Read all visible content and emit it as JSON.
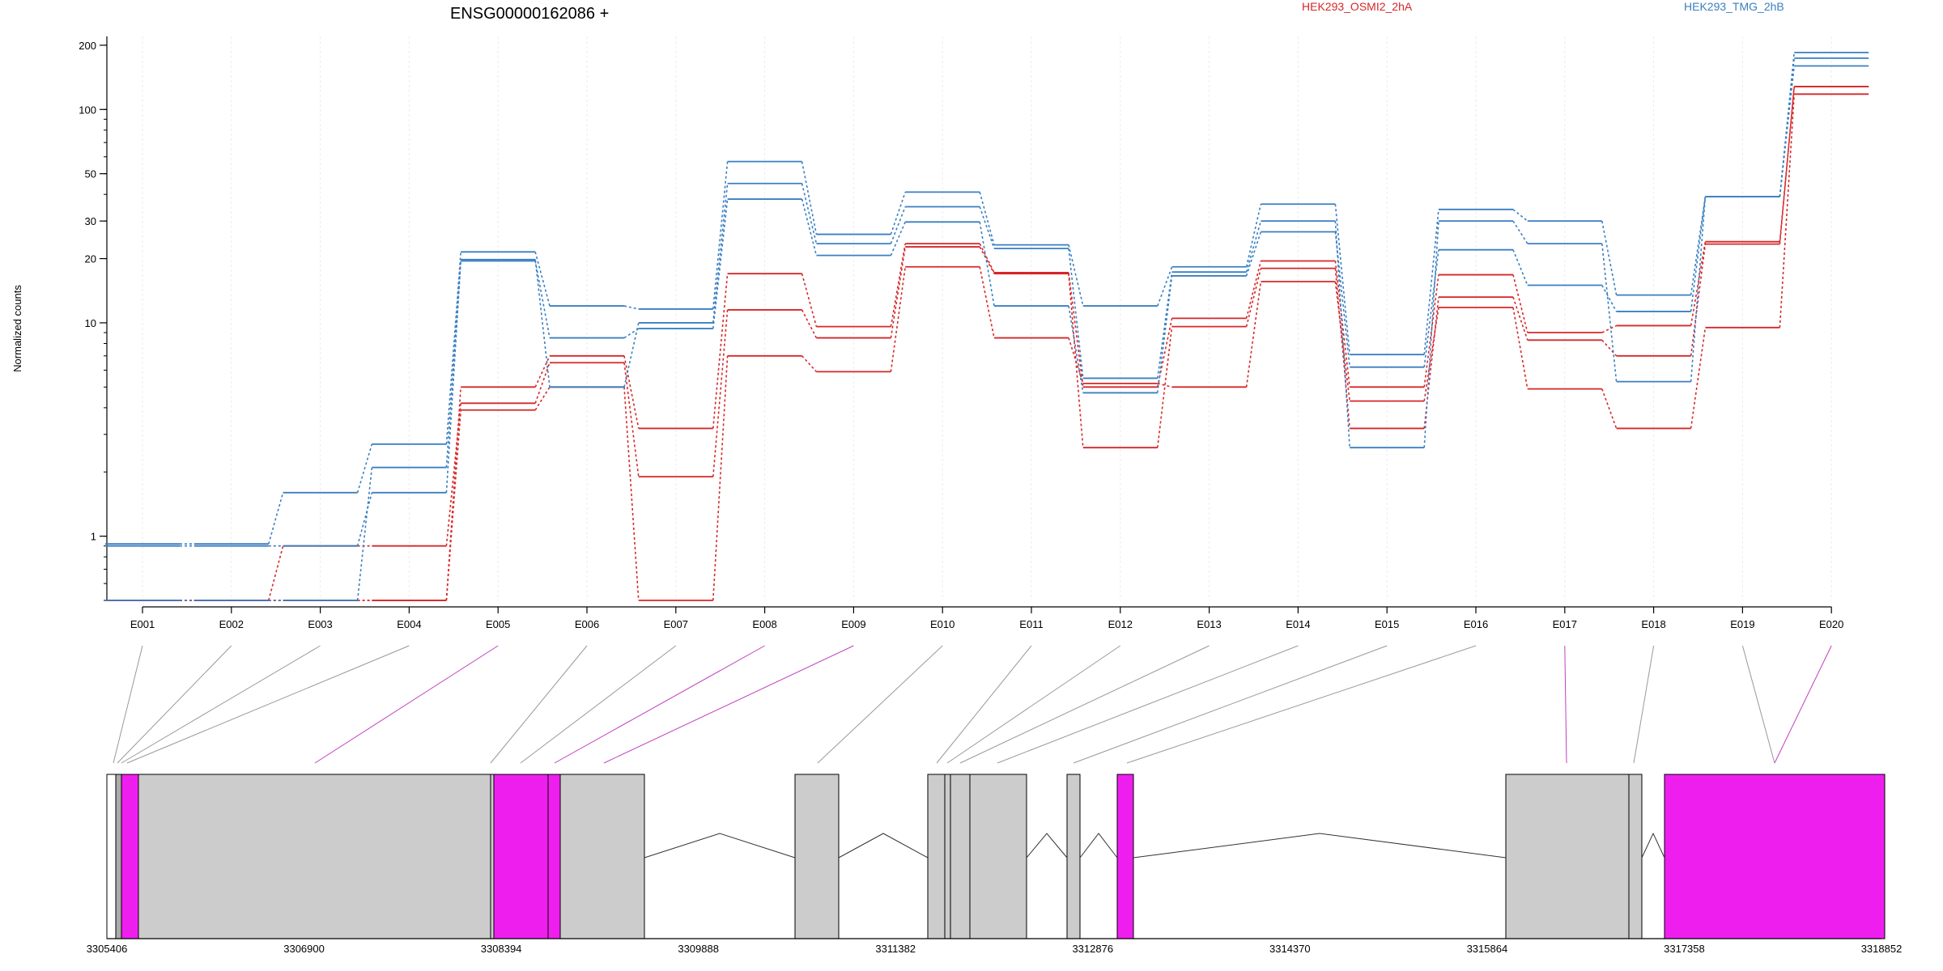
{
  "chart_data": {
    "type": "line",
    "title": "ENSG00000162086 +",
    "ylabel": "Normalized counts",
    "y_scale": "log",
    "ylim": [
      0.5,
      220
    ],
    "y_ticks": [
      1,
      10,
      20,
      30,
      50,
      100,
      200
    ],
    "y_tick_labels": [
      "1",
      "10",
      "20",
      "30",
      "50",
      "100",
      "200"
    ],
    "grid": true,
    "legend": [
      {
        "name": "HEK293_OSMI2_2hA",
        "color": "#d62728"
      },
      {
        "name": "HEK293_TMG_2hB",
        "color": "#3a7fc1"
      }
    ],
    "categories": [
      "E001",
      "E002",
      "E003",
      "E004",
      "E005",
      "E006",
      "E007",
      "E008",
      "E009",
      "E010",
      "E011",
      "E012",
      "E013",
      "E014",
      "E015",
      "E016",
      "E017",
      "E018",
      "E019",
      "E020"
    ],
    "series": [
      {
        "group": "HEK293_OSMI2_2hA",
        "color": "#d62728",
        "values": [
          0.5,
          0.5,
          0.5,
          0.5,
          5.0,
          7.0,
          3.2,
          17.0,
          9.6,
          23.5,
          17.2,
          5.0,
          10.5,
          19.5,
          5.0,
          16.8,
          9.0,
          9.7,
          24.0,
          128
        ]
      },
      {
        "group": "HEK293_OSMI2_2hA",
        "color": "#d62728",
        "values": [
          0.5,
          0.5,
          0.9,
          0.9,
          4.2,
          6.5,
          1.9,
          11.5,
          8.5,
          22.7,
          17.0,
          2.6,
          9.6,
          18.0,
          3.2,
          13.2,
          8.3,
          7.0,
          23.4,
          128
        ]
      },
      {
        "group": "HEK293_OSMI2_2hA",
        "color": "#d62728",
        "values": [
          0.5,
          0.5,
          0.5,
          0.5,
          3.9,
          5.0,
          0.5,
          7.0,
          5.9,
          18.3,
          8.5,
          5.2,
          5.0,
          15.6,
          4.3,
          11.8,
          4.9,
          3.2,
          9.5,
          118
        ]
      },
      {
        "group": "HEK293_TMG_2hB",
        "color": "#3a7fc1",
        "values": [
          0.92,
          0.92,
          1.6,
          2.7,
          21.5,
          12.0,
          11.6,
          57,
          26,
          41,
          23.2,
          12.0,
          18.3,
          36,
          7.1,
          34,
          30,
          13.5,
          39,
          185
        ]
      },
      {
        "group": "HEK293_TMG_2hB",
        "color": "#3a7fc1",
        "values": [
          0.9,
          0.9,
          0.9,
          1.6,
          19.5,
          8.5,
          9.4,
          38,
          20.7,
          29.7,
          12.0,
          4.7,
          16.6,
          26.7,
          6.2,
          22,
          15.0,
          11.3,
          39,
          174
        ]
      },
      {
        "group": "HEK293_TMG_2hB",
        "color": "#3a7fc1",
        "values": [
          0.5,
          0.5,
          0.5,
          2.1,
          19.8,
          5.0,
          10.0,
          45,
          23.5,
          35,
          22.3,
          5.5,
          17.3,
          30,
          2.6,
          30,
          23.5,
          5.3,
          39,
          160
        ]
      }
    ],
    "gene_model": {
      "x_ticks": [
        "3305406",
        "3306900",
        "3308394",
        "3309888",
        "3311382",
        "3312876",
        "3314370",
        "3315864",
        "3317358",
        "3318852"
      ],
      "x_range": [
        3305406,
        3318852
      ],
      "colors": {
        "exon": "#cccccc",
        "highlight": "#ee1fee"
      }
    }
  }
}
